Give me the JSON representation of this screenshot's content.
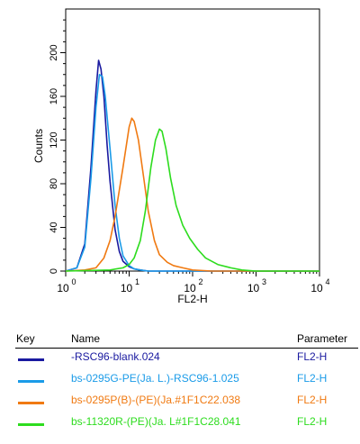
{
  "chart_data": {
    "type": "line",
    "xlabel": "FL2-H",
    "ylabel": "Counts",
    "x_scale": "log",
    "xlim": [
      1,
      10000
    ],
    "ylim": [
      0,
      240
    ],
    "x_ticks": [
      {
        "value": 1,
        "base": "10",
        "exp": "0"
      },
      {
        "value": 10,
        "base": "10",
        "exp": "1"
      },
      {
        "value": 100,
        "base": "10",
        "exp": "2"
      },
      {
        "value": 1000,
        "base": "10",
        "exp": "3"
      },
      {
        "value": 10000,
        "base": "10",
        "exp": "4"
      }
    ],
    "y_ticks": [
      "0",
      "40",
      "80",
      "120",
      "160",
      "200"
    ],
    "grid": false,
    "series": [
      {
        "name": "-RSC96-blank.024",
        "color": "#1a1aa0",
        "x": [
          1,
          1.5,
          2,
          2.5,
          3,
          3.3,
          3.6,
          4,
          4.5,
          5,
          6,
          7,
          8,
          10,
          12,
          15,
          20,
          30,
          10000
        ],
        "y": [
          0,
          3,
          25,
          95,
          165,
          193,
          185,
          160,
          115,
          82,
          38,
          18,
          9,
          4,
          2,
          1,
          0,
          0,
          0
        ]
      },
      {
        "name": "bs-0295G-PE(Ja. L.)-RSC96-1.025",
        "color": "#1a9be8",
        "x": [
          1,
          1.5,
          2,
          2.5,
          3,
          3.4,
          3.8,
          4.2,
          5,
          6,
          7,
          8,
          10,
          12,
          15,
          20,
          30,
          10000
        ],
        "y": [
          0,
          3,
          22,
          85,
          150,
          180,
          178,
          160,
          112,
          60,
          30,
          14,
          5,
          2,
          1,
          0,
          0,
          0
        ]
      },
      {
        "name": "bs-0295P(B)-(PE)(Ja.#1F1C22.038",
        "color": "#f07a12",
        "x": [
          1,
          2,
          3,
          4,
          5,
          6,
          8,
          10,
          11,
          12,
          14,
          17,
          20,
          25,
          30,
          40,
          50,
          70,
          100,
          200,
          10000
        ],
        "y": [
          0,
          1,
          3,
          12,
          28,
          50,
          95,
          132,
          140,
          137,
          120,
          85,
          55,
          28,
          15,
          8,
          5,
          3,
          1,
          0,
          0
        ]
      },
      {
        "name": "bs-11320R-(PE)(Ja. L#1F1C28.041",
        "color": "#2ddc1e",
        "x": [
          1,
          5,
          8,
          10,
          12,
          15,
          18,
          22,
          26,
          30,
          33,
          38,
          45,
          55,
          70,
          90,
          120,
          160,
          250,
          400,
          600,
          1000,
          10000
        ],
        "y": [
          0,
          1,
          3,
          6,
          12,
          28,
          55,
          95,
          120,
          130,
          128,
          112,
          85,
          60,
          42,
          30,
          20,
          12,
          6,
          3,
          1,
          0,
          0
        ]
      }
    ]
  },
  "legend": {
    "header": {
      "key": "Key",
      "name": "Name",
      "parameter": "Parameter"
    },
    "rows": [
      {
        "name": "-RSC96-blank.024",
        "parameter": "FL2-H",
        "color": "#1a1aa0"
      },
      {
        "name": "bs-0295G-PE(Ja. L.)-RSC96-1.025",
        "parameter": "FL2-H",
        "color": "#1a9be8"
      },
      {
        "name": "bs-0295P(B)-(PE)(Ja.#1F1C22.038",
        "parameter": "FL2-H",
        "color": "#f07a12"
      },
      {
        "name": "bs-11320R-(PE)(Ja. L#1F1C28.041",
        "parameter": "FL2-H",
        "color": "#2ddc1e"
      }
    ]
  }
}
